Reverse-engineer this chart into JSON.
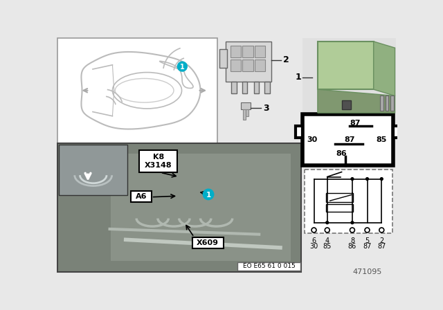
{
  "bg_color": "#e8e8e8",
  "white": "#ffffff",
  "black": "#000000",
  "cyan_color": "#00aec8",
  "photo_bg": "#8a9090",
  "photo_bg2": "#a0a8a8",
  "inset_bg": "#707878",
  "label_k8": "K8",
  "label_x3148": "X3148",
  "label_a6": "A6",
  "label_x609": "X609",
  "label_eo": "EO E65 61 0 015",
  "label_471095": "471095",
  "pin_labels_top": [
    "6",
    "4",
    "8",
    "5",
    "2"
  ],
  "pin_labels_bottom": [
    "30",
    "85",
    "86",
    "87",
    "87"
  ],
  "relay_top_pin": "87",
  "relay_mid_pins": [
    "30",
    "87",
    "85"
  ],
  "relay_bot_pin": "86",
  "car_body_color": "#cccccc",
  "connector_color": "#aaaaaa"
}
